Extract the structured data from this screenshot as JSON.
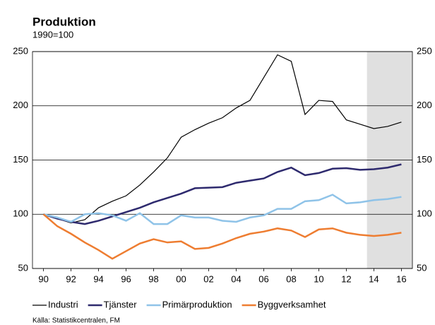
{
  "chart_data": {
    "type": "line",
    "title": "Produktion",
    "subtitle": "1990=100",
    "source": "Källa: Statistikcentralen, FM",
    "x": [
      1990,
      1991,
      1992,
      1993,
      1994,
      1995,
      1996,
      1997,
      1998,
      1999,
      2000,
      2001,
      2002,
      2003,
      2004,
      2005,
      2006,
      2007,
      2008,
      2009,
      2010,
      2011,
      2012,
      2013,
      2014,
      2015,
      2016
    ],
    "series": [
      {
        "name": "Industri",
        "color": "#000000",
        "values": [
          100,
          96,
          92,
          95,
          106,
          112,
          117,
          127,
          139,
          152,
          171,
          178,
          184,
          189,
          198,
          205,
          226,
          247,
          241,
          192,
          205,
          204,
          187,
          183,
          179,
          181,
          185
        ]
      },
      {
        "name": "Tjänster",
        "color": "#2e2a6e",
        "values": [
          100,
          96,
          93,
          91,
          94,
          98,
          102,
          106,
          111,
          115,
          119,
          124,
          124.5,
          125,
          129,
          131,
          133,
          139,
          143,
          136,
          138,
          142,
          142.5,
          141,
          141.5,
          143,
          146
        ]
      },
      {
        "name": "Primärproduktion",
        "color": "#8fc3e8",
        "values": [
          100,
          97,
          93,
          100,
          101,
          99,
          94,
          101,
          91,
          91,
          99,
          97,
          97,
          94,
          93,
          97,
          99,
          105,
          105,
          112,
          113,
          118,
          110,
          111,
          113,
          114,
          116
        ]
      },
      {
        "name": "Byggverksamhet",
        "color": "#ee7d31",
        "values": [
          100,
          89,
          82,
          74,
          67,
          59,
          66,
          73,
          77,
          74,
          75,
          68,
          69,
          73,
          78,
          82,
          84,
          87,
          85,
          79,
          86,
          87,
          83,
          81,
          80,
          81,
          83
        ]
      }
    ],
    "xlim": [
      1989.2,
      2016.8
    ],
    "xticks": [
      {
        "value": 1990,
        "label": "90"
      },
      {
        "value": 1992,
        "label": "92"
      },
      {
        "value": 1994,
        "label": "94"
      },
      {
        "value": 1996,
        "label": "96"
      },
      {
        "value": 1998,
        "label": "98"
      },
      {
        "value": 2000,
        "label": "00"
      },
      {
        "value": 2002,
        "label": "02"
      },
      {
        "value": 2004,
        "label": "04"
      },
      {
        "value": 2006,
        "label": "06"
      },
      {
        "value": 2008,
        "label": "08"
      },
      {
        "value": 2010,
        "label": "10"
      },
      {
        "value": 2012,
        "label": "12"
      },
      {
        "value": 2014,
        "label": "14"
      },
      {
        "value": 2016,
        "label": "16"
      }
    ],
    "ylim": [
      50,
      250
    ],
    "yticks": [
      50,
      100,
      150,
      200,
      250
    ],
    "y2lim": [
      50,
      250
    ],
    "y2ticks": [
      50,
      100,
      150,
      200,
      250
    ],
    "shaded_range": [
      2013.5,
      2016.8
    ],
    "shade_color": "#e0e0e0",
    "grid": true
  }
}
